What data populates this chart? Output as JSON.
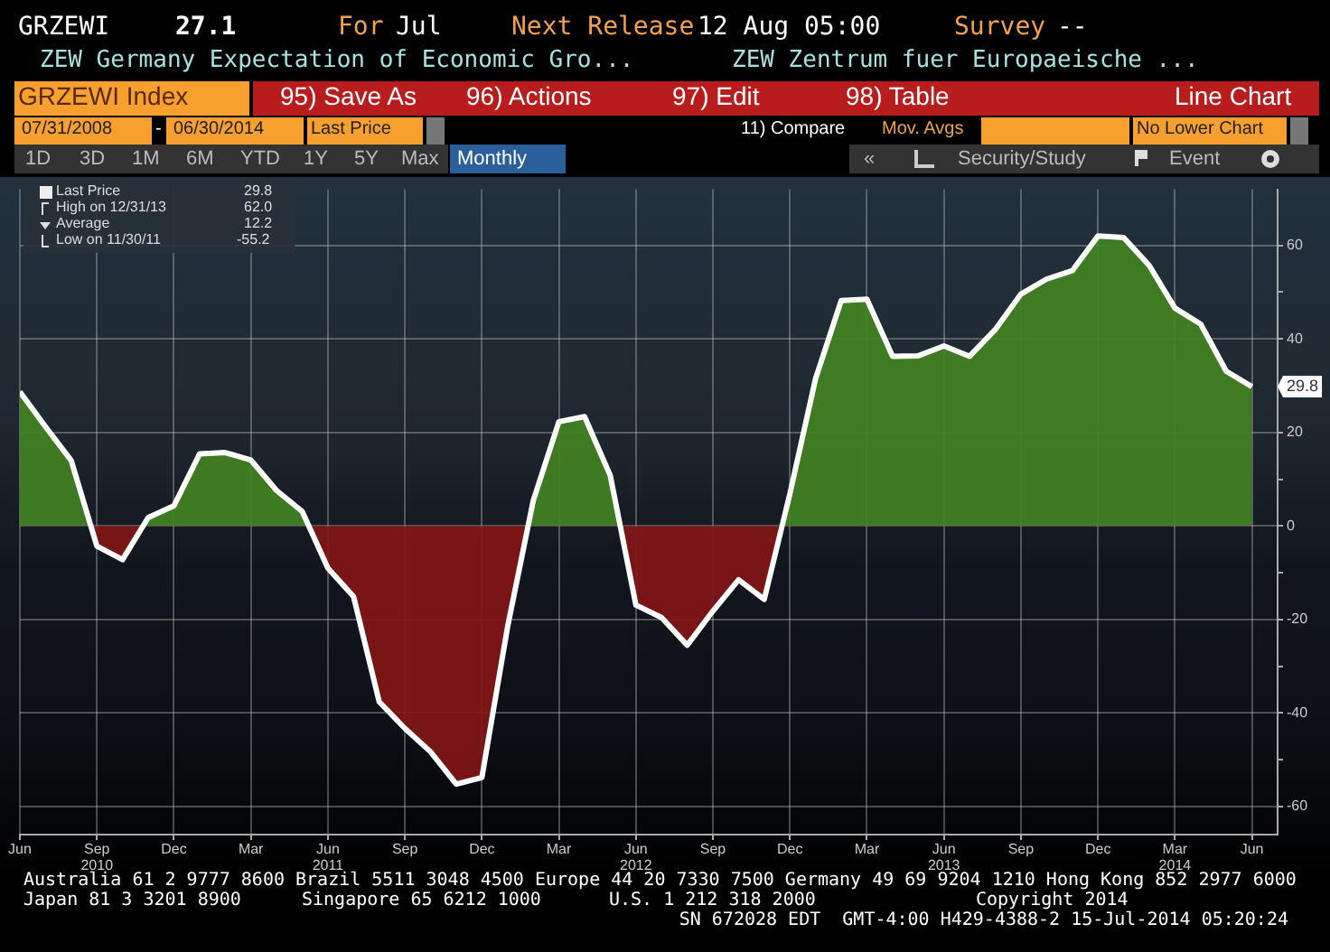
{
  "chart_data": {
    "type": "area",
    "x": [
      "2010-06",
      "2010-07",
      "2010-08",
      "2010-09",
      "2010-10",
      "2010-11",
      "2010-12",
      "2011-01",
      "2011-02",
      "2011-03",
      "2011-04",
      "2011-05",
      "2011-06",
      "2011-07",
      "2011-08",
      "2011-09",
      "2011-10",
      "2011-11",
      "2011-12",
      "2012-01",
      "2012-02",
      "2012-03",
      "2012-04",
      "2012-05",
      "2012-06",
      "2012-07",
      "2012-08",
      "2012-09",
      "2012-10",
      "2012-11",
      "2012-12",
      "2013-01",
      "2013-02",
      "2013-03",
      "2013-04",
      "2013-05",
      "2013-06",
      "2013-07",
      "2013-08",
      "2013-09",
      "2013-10",
      "2013-11",
      "2013-12",
      "2014-01",
      "2014-02",
      "2014-03",
      "2014-04",
      "2014-05",
      "2014-06"
    ],
    "series": [
      {
        "color": "#ffffff",
        "values": [
          28.7,
          21.2,
          14.0,
          -4.3,
          -7.2,
          1.8,
          4.3,
          15.4,
          15.7,
          14.1,
          7.6,
          3.1,
          -9.0,
          -15.1,
          -37.6,
          -43.3,
          -48.3,
          -55.2,
          -53.8,
          -21.6,
          5.4,
          22.3,
          23.4,
          10.8,
          -16.9,
          -19.6,
          -25.5,
          -18.2,
          -11.5,
          -15.7,
          6.9,
          31.5,
          48.2,
          48.5,
          36.3,
          36.4,
          38.5,
          36.3,
          42.0,
          49.6,
          52.8,
          54.6,
          62.0,
          61.7,
          55.7,
          46.6,
          43.2,
          33.1,
          29.8
        ]
      }
    ],
    "xlim": [
      "2010-06",
      "2014-07"
    ],
    "xticks": [
      {
        "value": "2010-06",
        "label": "Jun"
      },
      {
        "value": "2010-09",
        "label": "Sep\n2010"
      },
      {
        "value": "2010-12",
        "label": "Dec"
      },
      {
        "value": "2011-03",
        "label": "Mar"
      },
      {
        "value": "2011-06",
        "label": "Jun\n2011"
      },
      {
        "value": "2011-09",
        "label": "Sep"
      },
      {
        "value": "2011-12",
        "label": "Dec"
      },
      {
        "value": "2012-03",
        "label": "Mar"
      },
      {
        "value": "2012-06",
        "label": "Jun\n2012"
      },
      {
        "value": "2012-09",
        "label": "Sep"
      },
      {
        "value": "2012-12",
        "label": "Dec"
      },
      {
        "value": "2013-03",
        "label": "Mar"
      },
      {
        "value": "2013-06",
        "label": "Jun\n2013"
      },
      {
        "value": "2013-09",
        "label": "Sep"
      },
      {
        "value": "2013-12",
        "label": "Dec"
      },
      {
        "value": "2014-03",
        "label": "Mar\n2014"
      },
      {
        "value": "2014-06",
        "label": "Jun"
      }
    ],
    "ylim": [
      -66,
      72
    ],
    "yticks": [
      -60,
      {
        "value": -50,
        "label": null
      },
      -40,
      {
        "value": -30,
        "label": null
      },
      -20,
      {
        "value": -10,
        "label": null
      },
      0,
      {
        "value": 10,
        "label": null
      },
      20,
      {
        "value": 30,
        "label": null
      },
      40,
      {
        "value": 50,
        "label": null
      },
      60
    ],
    "grid": true,
    "legend": false,
    "marker": "none",
    "line_style": "solid",
    "annotations": [
      "GRZEWI",
      "27.1",
      "For",
      "Jul",
      "Next Release",
      "12 Aug 05:00",
      "Survey",
      "--",
      "ZEW Germany Expectation of Economic Gro...",
      "ZEW Zentrum fuer Europaeische ...",
      "GRZEWI Index",
      "95) Save As",
      "96) Actions",
      "97) Edit",
      "98) Table",
      "Line Chart",
      "07/31/2008",
      "-",
      "06/30/2014",
      "Last Price",
      "11) Compare",
      "Mov. Avgs",
      "No Lower Chart",
      "1D",
      "3D",
      "1M",
      "6M",
      "YTD",
      "1Y",
      "5Y",
      "Max",
      "Monthly",
      "«",
      "Security/Study",
      "Event",
      "Last Price",
      "29.8",
      "High on 12/31/13",
      "62.0",
      "Average",
      "12.2",
      "Low on 11/30/11",
      "-55.2",
      "Australia 61 2 9777 8600 Brazil 5511 3048 4500 Europe 44 20 7330 7500 Germany 49 69 9204 1210 Hong Kong 852 2977 6000",
      "Japan 81 3 3201 8900",
      "Singapore 65 6212 1000",
      "U.S. 1 212 318 2000",
      "Copyright 2014",
      "SN 672028 EDT  GMT-4:00 H429-4388-2 15-Jul-2014 05:20:24",
      {
        "text": "29.8",
        "x": "2014-06",
        "y": 29.8
      }
    ]
  }
}
